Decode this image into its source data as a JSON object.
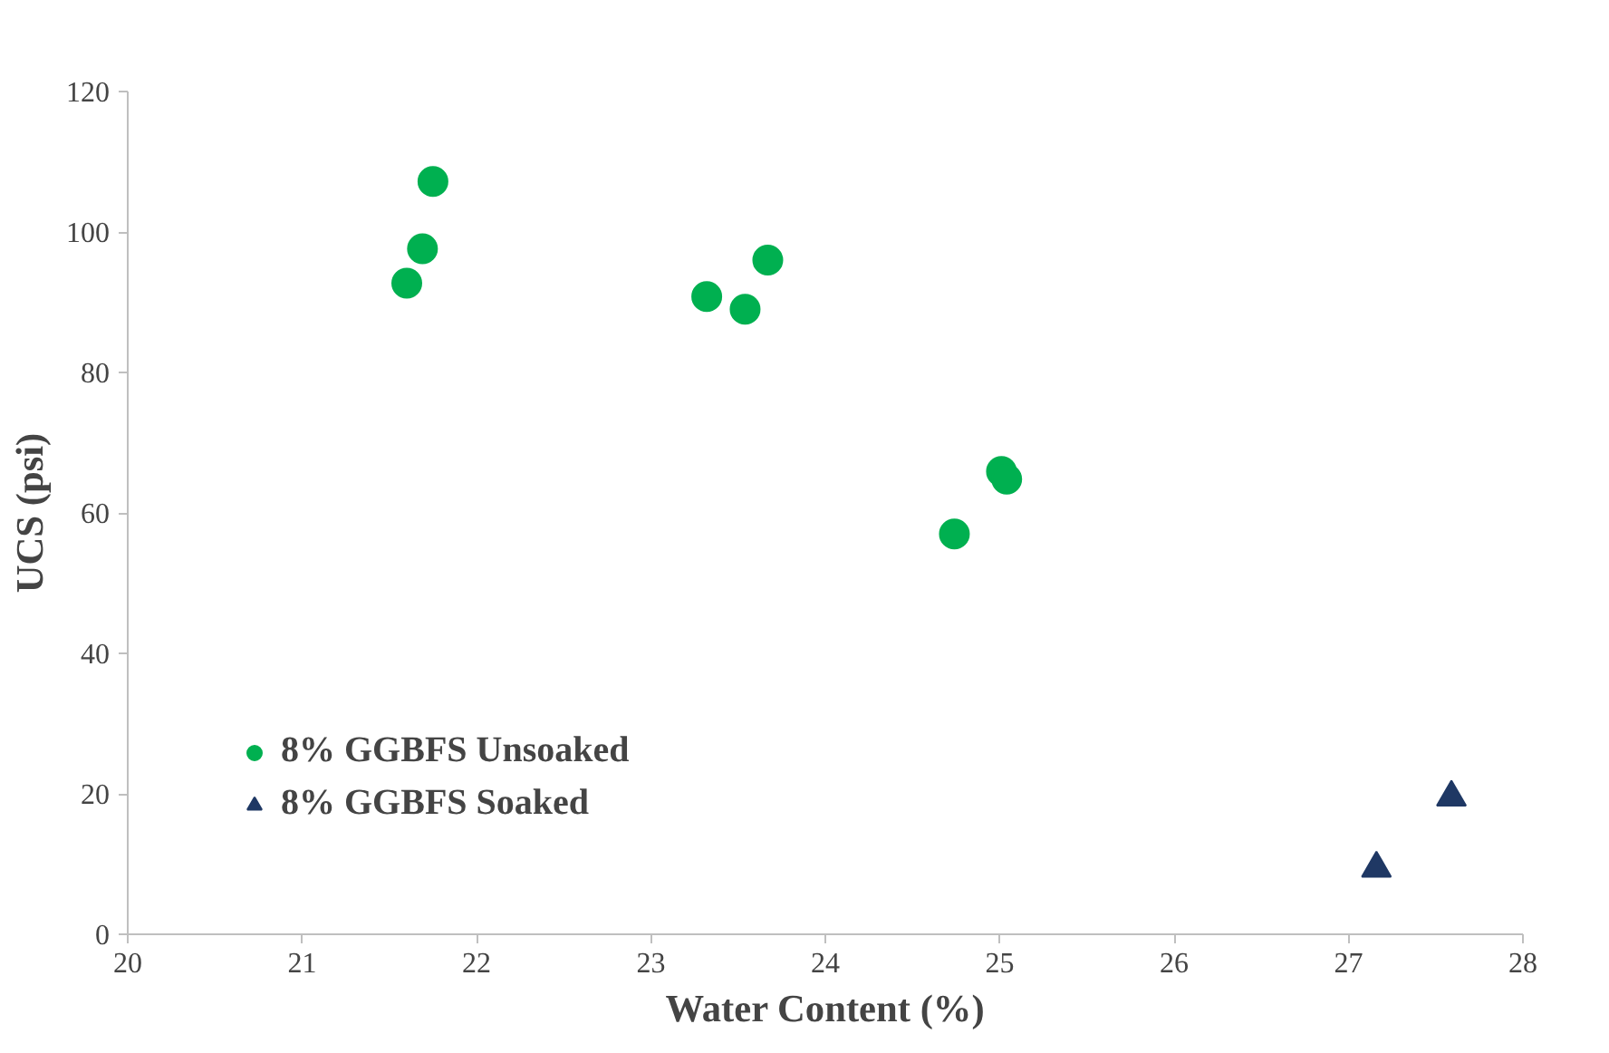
{
  "chart_data": {
    "type": "scatter",
    "xlabel": "Water Content (%)",
    "ylabel": "UCS (psi)",
    "xlim": [
      20,
      28
    ],
    "xticks": [
      20,
      21,
      22,
      23,
      24,
      25,
      26,
      27,
      28
    ],
    "ylim": [
      0,
      120
    ],
    "yticks": [
      0,
      20,
      40,
      60,
      80,
      100,
      120
    ],
    "grid": false,
    "legend": "bottom left",
    "series": [
      {
        "name": "8% GGBFS Unsoaked",
        "color": "#00b050",
        "marker": "circle",
        "x": [
          21.6,
          21.69,
          21.75,
          23.32,
          23.54,
          23.67,
          24.74,
          25.01,
          25.04
        ],
        "values": [
          92.7,
          97.6,
          107.2,
          90.8,
          89.0,
          96.0,
          57.0,
          65.9,
          64.8
        ]
      },
      {
        "name": "8% GGBFS Soaked",
        "color": "#1f3864",
        "marker": "triangle",
        "x": [
          27.16,
          27.59
        ],
        "values": [
          9.4,
          19.5
        ]
      }
    ]
  }
}
